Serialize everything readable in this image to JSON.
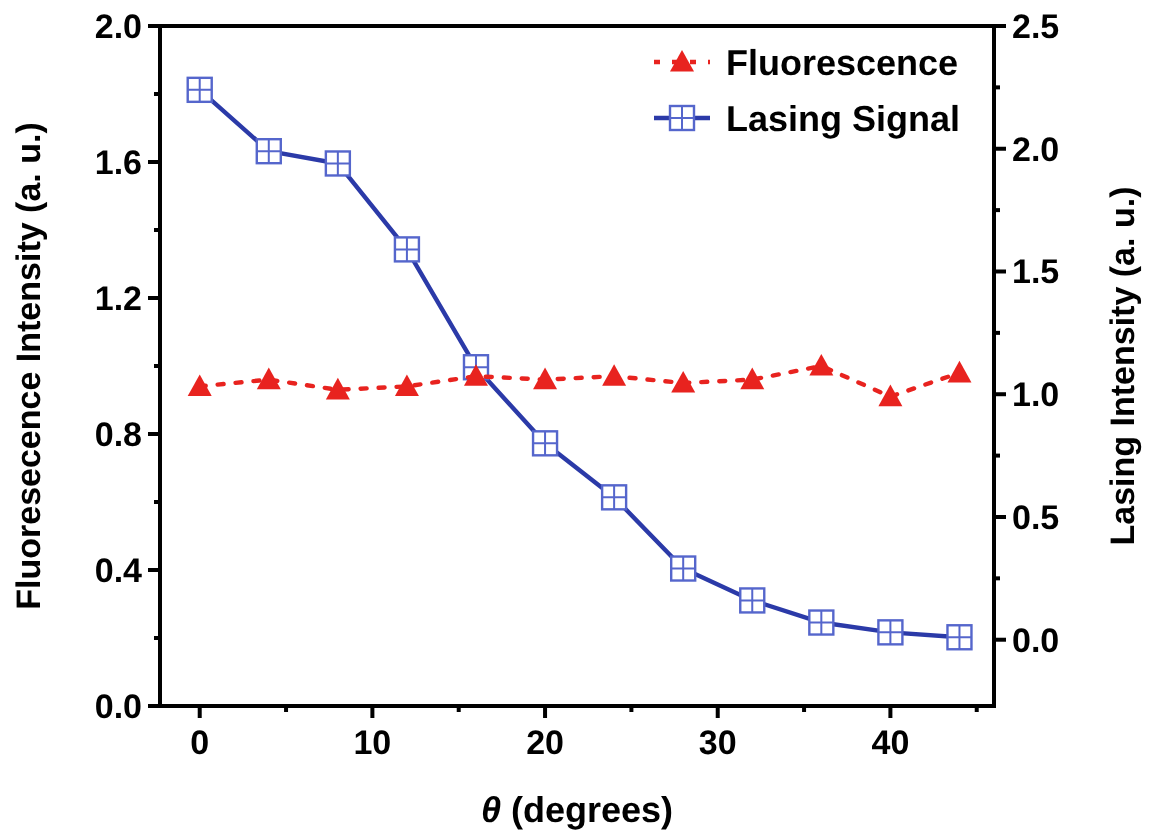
{
  "chart_data": {
    "type": "line",
    "xlabel": "θ (degrees)",
    "ylabel": "Fluoresecence Intensity (a. u.)",
    "y2label": "Lasing Intensity (a. u.)",
    "x": [
      0,
      4,
      8,
      12,
      16,
      20,
      24,
      28,
      32,
      36,
      40,
      44
    ],
    "xlim": [
      -2.3,
      46
    ],
    "xticks": [
      0,
      10,
      20,
      30,
      40
    ],
    "ylim": [
      0,
      2.0
    ],
    "yticks": [
      {
        "value": 0,
        "label": "0.0"
      },
      0.4,
      0.8,
      1.2,
      1.6,
      {
        "value": 2,
        "label": "2.0"
      }
    ],
    "y2lim": [
      -0.27,
      2.5
    ],
    "y2ticks": [
      {
        "value": 0,
        "label": "0.0"
      },
      0.5,
      {
        "value": 1,
        "label": "1.0"
      },
      1.5,
      {
        "value": 2,
        "label": "2.0"
      },
      2.5
    ],
    "legend": "top right",
    "grid": false,
    "series": [
      {
        "name": "Fluorescence",
        "color": "#e8231f",
        "marker": "triangle",
        "line_style": "dotted",
        "values": [
          0.94,
          0.96,
          0.93,
          0.94,
          0.97,
          0.96,
          0.97,
          0.95,
          0.96,
          1.0,
          0.91,
          0.98
        ]
      },
      {
        "name": "Lasing Signal",
        "color": "#2b3aa8",
        "marker": "square",
        "line_style": "solid",
        "axis": "y2",
        "values": [
          2.24,
          1.99,
          1.94,
          1.59,
          1.11,
          0.8,
          0.58,
          0.29,
          0.16,
          0.07,
          0.03,
          0.01
        ]
      }
    ]
  }
}
